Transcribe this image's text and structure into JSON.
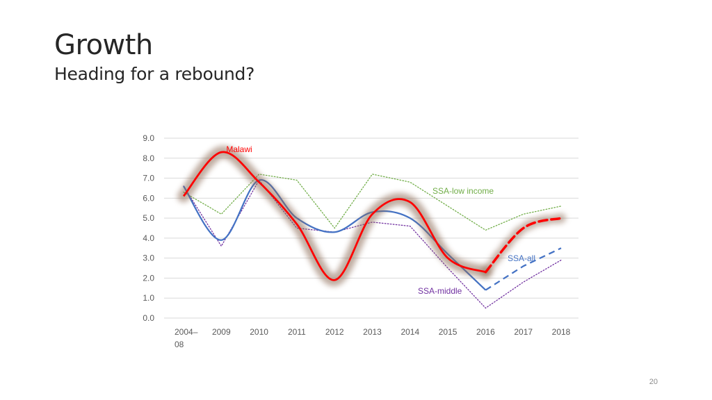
{
  "slide": {
    "title": "Growth",
    "subtitle": "Heading for a rebound?",
    "page_number": "20"
  },
  "chart_data": {
    "type": "line",
    "title": "",
    "xlabel": "",
    "ylabel": "",
    "categories": [
      "2004–08",
      "2009",
      "2010",
      "2011",
      "2012",
      "2013",
      "2014",
      "2015",
      "2016",
      "2017",
      "2018"
    ],
    "category_labels": [
      [
        "2004–",
        "08"
      ],
      [
        "2009"
      ],
      [
        "2010"
      ],
      [
        "2011"
      ],
      [
        "2012"
      ],
      [
        "2013"
      ],
      [
        "2014"
      ],
      [
        "2015"
      ],
      [
        "2016"
      ],
      [
        "2017"
      ],
      [
        "2018"
      ]
    ],
    "ylim": [
      0,
      9
    ],
    "yticks": [
      "0.0",
      "1.0",
      "2.0",
      "3.0",
      "4.0",
      "5.0",
      "6.0",
      "7.0",
      "8.0",
      "9.0"
    ],
    "grid": true,
    "legend": "none",
    "series": [
      {
        "name": "SSA-low income",
        "color": "#70ad47",
        "style": "dotted",
        "values": [
          6.3,
          5.2,
          7.2,
          6.9,
          4.5,
          7.2,
          6.8,
          5.6,
          4.4,
          5.2,
          5.6
        ]
      },
      {
        "name": "SSA-middle",
        "color": "#7030a0",
        "style": "dotted",
        "values": [
          6.6,
          3.6,
          6.9,
          4.5,
          4.3,
          4.8,
          4.6,
          2.5,
          0.5,
          1.8,
          2.9
        ]
      },
      {
        "name": "SSA-all",
        "color": "#4472c4",
        "style": "solid-then-dashed",
        "dashed_from_index": 8,
        "values": [
          6.6,
          3.9,
          6.9,
          5.0,
          4.3,
          5.3,
          5.0,
          3.2,
          1.4,
          2.6,
          3.5
        ]
      },
      {
        "name": "Malawi",
        "color": "#ff0000",
        "style": "solid-then-dashed",
        "highlight": true,
        "dashed_from_index": 8,
        "values": [
          6.1,
          8.3,
          6.8,
          4.7,
          1.9,
          5.2,
          5.8,
          3.0,
          2.3,
          4.5,
          5.0
        ]
      }
    ]
  }
}
